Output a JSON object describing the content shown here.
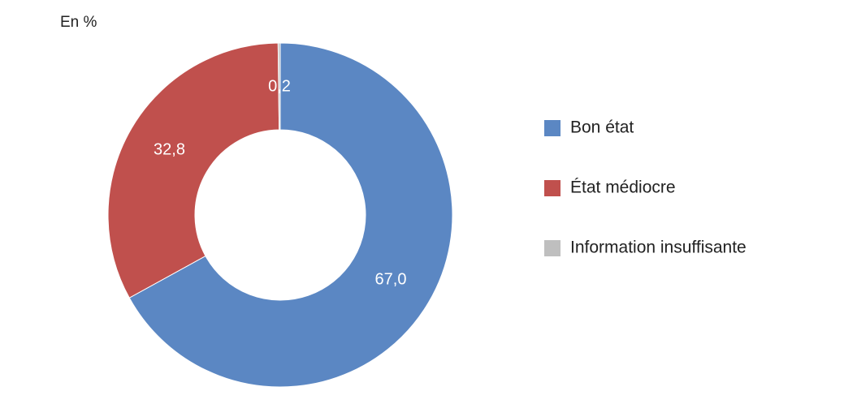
{
  "chart_data": {
    "type": "donut",
    "subtitle": "En %",
    "categories": [
      "Bon état",
      "État médiocre",
      "Information insuffisante"
    ],
    "values": [
      67.0,
      32.8,
      0.2
    ],
    "value_labels": [
      "67,0",
      "32,8",
      "0,2"
    ],
    "colors": [
      "#5b87c3",
      "#c0504d",
      "#bfbfbf"
    ],
    "legend": "right"
  }
}
